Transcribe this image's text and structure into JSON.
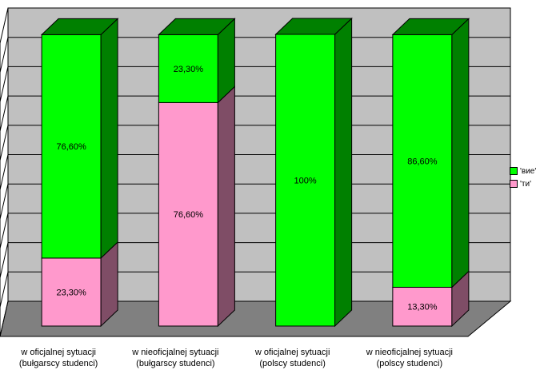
{
  "chart_data": {
    "type": "bar",
    "stacked": true,
    "three_d": true,
    "categories": [
      [
        "w oficjalnej sytuacji",
        "(bułgarscy studenci)"
      ],
      [
        "w nieoficjalnej sytuacji",
        "(bułgarscy studenci)"
      ],
      [
        "w oficjalnej sytuacji",
        "(polscy studenci)"
      ],
      [
        "w nieoficjalnej sytuacji",
        "(polscy studenci)"
      ]
    ],
    "series": [
      {
        "name": "'ти'",
        "values": [
          23.3,
          76.6,
          0,
          13.3
        ],
        "labels": [
          "23,30%",
          "76,60%",
          "",
          "13,30%"
        ],
        "color": "#ff99cc",
        "side_color": "#7f4d66"
      },
      {
        "name": "'вие'",
        "values": [
          76.6,
          23.3,
          100,
          86.6
        ],
        "labels": [
          "76,60%",
          "23,30%",
          "100%",
          "86,60%"
        ],
        "color": "#00ff00",
        "side_color": "#008000"
      }
    ],
    "ylim": [
      0,
      100
    ],
    "grid": true,
    "legend_position": "right",
    "colors": {
      "wall": "#c0c0c0",
      "floor": "#808080",
      "grid": "#000000"
    }
  }
}
